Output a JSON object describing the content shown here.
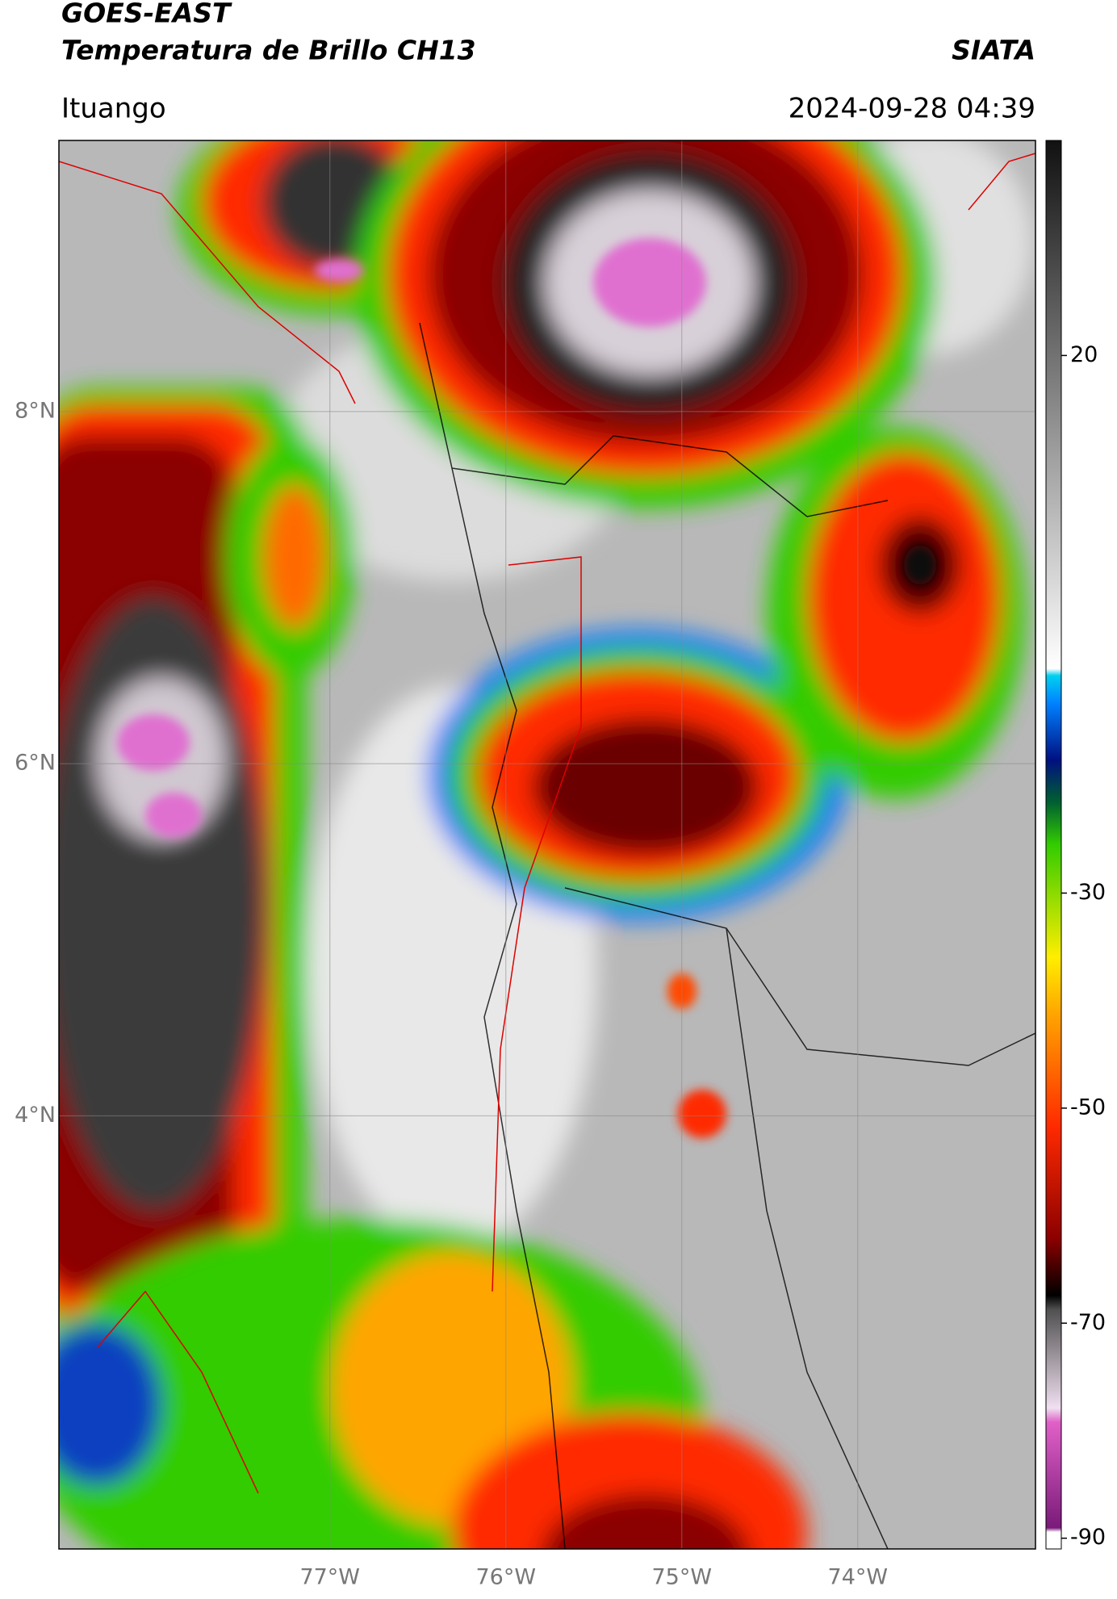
{
  "header": {
    "title": "GOES-EAST",
    "subtitle": "Temperatura de Brillo CH13",
    "org": "SIATA",
    "location": "Ituango",
    "datetime": "2024-09-28 04:39"
  },
  "map": {
    "lon_range": [
      -78.54,
      -72.99
    ],
    "lat_range": [
      1.54,
      9.54
    ],
    "grid": true,
    "lat_ticks": [
      {
        "value": 8,
        "label": "8°N"
      },
      {
        "value": 6,
        "label": "6°N"
      },
      {
        "value": 4,
        "label": "4°N"
      }
    ],
    "lon_ticks": [
      {
        "value": -77,
        "label": "77°W"
      },
      {
        "value": -76,
        "label": "76°W"
      },
      {
        "value": -75,
        "label": "75°W"
      },
      {
        "value": -74,
        "label": "74°W"
      }
    ]
  },
  "colorbar": {
    "range": [
      -91,
      40
    ],
    "ticks": [
      20,
      -30,
      -50,
      -70,
      -90
    ]
  }
}
